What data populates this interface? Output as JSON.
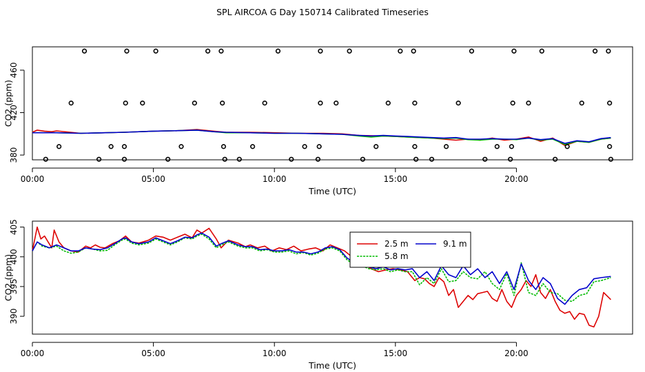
{
  "title": "SPL AIRCOA G  Day 150714  Calibrated Timeseries",
  "colors": {
    "red": "#dd0000",
    "green": "#00bb00",
    "blue": "#0000cc",
    "axis": "#000000"
  },
  "chart_data": [
    {
      "type": "scatter",
      "title": "SPL AIRCOA G  Day 150714  Calibrated Timeseries",
      "xlabel": "Time (UTC)",
      "ylabel": "CO2 (ppm)",
      "xlim": [
        0,
        24.8
      ],
      "ylim": [
        375.5,
        482
      ],
      "x_tick_values": [
        0,
        5,
        10,
        15,
        20
      ],
      "x_tick_labels": [
        "00:00",
        "05:00",
        "10:00",
        "15:00",
        "20:00"
      ],
      "y_tick_values": [
        380,
        420,
        460
      ],
      "y_tick_labels": [
        "380",
        "420",
        "460"
      ],
      "calibration_points": {
        "name": "calibration",
        "marker": "open-circle",
        "x": [
          2.15,
          3.9,
          5.1,
          7.25,
          7.8,
          10.15,
          11.9,
          13.1,
          15.2,
          15.75,
          18.15,
          19.9,
          21.05,
          23.25,
          23.8,
          1.6,
          3.85,
          4.55,
          6.7,
          7.85,
          9.6,
          11.9,
          12.55,
          14.7,
          15.8,
          17.6,
          19.85,
          20.5,
          22.7,
          23.85,
          1.1,
          3.25,
          3.8,
          6.15,
          7.9,
          9.1,
          11.25,
          11.85,
          14.2,
          15.8,
          17.1,
          19.2,
          19.8,
          22.1,
          23.85,
          0.55,
          2.75,
          3.8,
          5.6,
          7.95,
          8.55,
          10.7,
          11.8,
          13.65,
          15.85,
          16.5,
          18.7,
          19.75,
          21.6,
          23.9
        ],
        "y": [
          478,
          478,
          478,
          478,
          478,
          478,
          478,
          478,
          478,
          478,
          478,
          478,
          478,
          478,
          478,
          429,
          429,
          429,
          429,
          429,
          429,
          429,
          429,
          429,
          429,
          429,
          429,
          429,
          429,
          429,
          388,
          388,
          388,
          388,
          388,
          388,
          388,
          388,
          388,
          388,
          388,
          388,
          388,
          388,
          388,
          376,
          376,
          376,
          376,
          376,
          376,
          376,
          376,
          376,
          376,
          376,
          376,
          376,
          376,
          376
        ]
      },
      "series": [
        {
          "name": "2.5 m",
          "color": "#dd0000",
          "x": [
            0,
            0.2,
            0.5,
            0.8,
            1,
            2,
            3,
            3.8,
            5,
            6,
            6.8,
            7.5,
            8,
            9,
            10,
            11,
            12,
            12.8,
            13.5,
            14.5,
            15,
            15.5,
            16,
            16.5,
            17,
            17.5,
            18,
            18.5,
            19,
            19.5,
            20,
            20.5,
            21,
            21.5,
            22,
            22.5,
            23,
            23.5,
            23.9
          ],
          "values": [
            401.5,
            403.5,
            402.5,
            402,
            402.8,
            400.5,
            401,
            401.5,
            402.5,
            403,
            404,
            402.5,
            401.5,
            401.5,
            401,
            400.5,
            400.5,
            400,
            398.5,
            398,
            397.5,
            397,
            396.5,
            396,
            395,
            394,
            395,
            394,
            396,
            394,
            395,
            397,
            393,
            396,
            389,
            393,
            392,
            395,
            396
          ]
        },
        {
          "name": "5.8 m",
          "color": "#00bb00",
          "x": [
            0,
            0.5,
            1,
            2,
            3,
            3.8,
            5,
            6,
            6.8,
            7.5,
            8,
            9,
            10,
            11,
            12,
            12.8,
            13.5,
            14,
            14.5,
            15,
            15.5,
            16,
            16.5,
            17,
            17.5,
            18,
            18.5,
            19,
            19.5,
            20,
            20.5,
            21,
            21.5,
            22,
            22.5,
            23,
            23.5,
            23.9
          ],
          "values": [
            401,
            401,
            401,
            400.5,
            401,
            401.5,
            402.5,
            403,
            403.5,
            402,
            401,
            401,
            400.5,
            400.5,
            400,
            399.5,
            398,
            397,
            398,
            397.5,
            397,
            396.5,
            396,
            395.5,
            396,
            394.5,
            394,
            395,
            395,
            394.5,
            396,
            394,
            395,
            390,
            393,
            392,
            395,
            396
          ]
        },
        {
          "name": "9.1 m",
          "color": "#0000cc",
          "x": [
            0,
            0.5,
            1,
            2,
            3,
            3.8,
            5,
            6,
            6.8,
            7.5,
            8,
            9,
            10,
            11,
            12,
            12.8,
            13.5,
            14,
            14.5,
            15,
            15.5,
            16,
            16.5,
            17,
            17.5,
            18,
            18.5,
            19,
            19.5,
            20,
            20.5,
            21,
            21.5,
            22,
            22.5,
            23,
            23.5,
            23.9
          ],
          "values": [
            401,
            401,
            401,
            400.5,
            401,
            401.5,
            402.5,
            403,
            403.5,
            402,
            401.5,
            401,
            400.5,
            400.5,
            400,
            399.5,
            398.5,
            398,
            398.5,
            398,
            397.5,
            397,
            396.5,
            396,
            396.5,
            395,
            395,
            395.5,
            395,
            395,
            396,
            394.5,
            395.5,
            391,
            393.5,
            392.5,
            395.5,
            396.5
          ]
        }
      ]
    },
    {
      "type": "line",
      "title": "",
      "xlabel": "Time (UTC)",
      "ylabel": "CO2 (ppm)",
      "xlim": [
        0,
        24.8
      ],
      "ylim": [
        387,
        406
      ],
      "x_tick_values": [
        0,
        5,
        10,
        15,
        20
      ],
      "x_tick_labels": [
        "00:00",
        "05:00",
        "10:00",
        "15:00",
        "20:00"
      ],
      "y_tick_values": [
        390,
        395,
        400,
        405
      ],
      "y_tick_labels": [
        "390",
        "395",
        "400",
        "405"
      ],
      "legend": {
        "placement": "top-center",
        "entries": [
          "2.5 m",
          "9.1 m",
          "5.8 m"
        ]
      },
      "series": [
        {
          "name": "2.5 m",
          "color": "#dd0000",
          "x": [
            0,
            0.2,
            0.35,
            0.5,
            0.65,
            0.8,
            0.9,
            1.1,
            1.3,
            1.6,
            1.9,
            2.2,
            2.4,
            2.6,
            2.8,
            3.0,
            3.3,
            3.6,
            3.85,
            4.1,
            4.4,
            4.8,
            5.1,
            5.4,
            5.7,
            6.0,
            6.3,
            6.6,
            6.8,
            7.0,
            7.3,
            7.6,
            7.8,
            8.1,
            8.5,
            8.8,
            9.0,
            9.3,
            9.6,
            9.9,
            10.2,
            10.5,
            10.8,
            11.1,
            11.4,
            11.7,
            12.0,
            12.3,
            12.6,
            12.9,
            13.2,
            13.5,
            13.8,
            14.0,
            14.3,
            14.6,
            14.9,
            15.2,
            15.5,
            15.8,
            16.0,
            16.2,
            16.4,
            16.6,
            16.8,
            17.0,
            17.2,
            17.4,
            17.6,
            17.8,
            18.0,
            18.2,
            18.4,
            18.6,
            18.8,
            19.0,
            19.2,
            19.4,
            19.6,
            19.8,
            20.0,
            20.2,
            20.4,
            20.6,
            20.8,
            21.0,
            21.2,
            21.4,
            21.6,
            21.8,
            22.0,
            22.2,
            22.4,
            22.6,
            22.8,
            23.0,
            23.2,
            23.4,
            23.6,
            23.9
          ],
          "values": [
            401,
            405,
            403,
            403.5,
            402.5,
            401.5,
            404.5,
            402.5,
            401.5,
            401,
            400.8,
            401.8,
            401.5,
            402,
            401.6,
            401.5,
            402.2,
            402.7,
            403.5,
            402.5,
            402.3,
            402.8,
            403.5,
            403.3,
            402.8,
            403.3,
            403.8,
            403.2,
            404.5,
            404,
            404.8,
            403,
            401.5,
            402.8,
            402.3,
            401.7,
            402,
            401.5,
            401.8,
            401,
            401.5,
            401.2,
            401.8,
            401,
            401.3,
            401.5,
            401,
            402,
            401.5,
            401,
            400,
            398.7,
            398.5,
            398,
            397.5,
            397.8,
            398,
            397.8,
            397.5,
            396,
            396.5,
            396.3,
            395.5,
            395,
            396.5,
            395.8,
            393.5,
            394.5,
            391.5,
            392.5,
            393.5,
            392.8,
            393.8,
            394,
            394.2,
            393,
            392.5,
            394.5,
            392.5,
            391.5,
            393.5,
            394.5,
            396,
            395,
            397,
            394,
            393,
            394.5,
            392.5,
            391,
            390.5,
            390.8,
            389.5,
            390.5,
            390.3,
            388.5,
            388.2,
            390,
            394,
            392.8
          ]
        },
        {
          "name": "5.8 m",
          "color": "#00bb00",
          "x": [
            0,
            0.2,
            0.4,
            0.7,
            1.0,
            1.3,
            1.6,
            1.9,
            2.2,
            2.5,
            2.8,
            3.1,
            3.4,
            3.7,
            3.85,
            4.1,
            4.4,
            4.8,
            5.1,
            5.4,
            5.7,
            6.0,
            6.3,
            6.6,
            6.8,
            7.0,
            7.3,
            7.6,
            7.8,
            8.1,
            8.5,
            8.8,
            9.1,
            9.4,
            9.7,
            10.0,
            10.3,
            10.6,
            10.9,
            11.2,
            11.5,
            11.8,
            12.1,
            12.4,
            12.7,
            13.0,
            13.3,
            13.6,
            13.9,
            14.2,
            14.5,
            14.8,
            15.1,
            15.4,
            15.7,
            16.0,
            16.3,
            16.6,
            16.9,
            17.2,
            17.5,
            17.8,
            18.1,
            18.4,
            18.7,
            19.0,
            19.3,
            19.6,
            19.9,
            20.2,
            20.5,
            20.8,
            21.1,
            21.4,
            21.7,
            22.0,
            22.3,
            22.6,
            22.9,
            23.2,
            23.5,
            23.9
          ],
          "values": [
            401,
            402.5,
            401.8,
            401.5,
            401.8,
            401,
            400.6,
            400.8,
            401.5,
            401.3,
            401,
            401.1,
            402,
            402.8,
            403,
            402.3,
            402,
            402.3,
            403,
            402.5,
            402,
            402.5,
            403.2,
            403,
            403.5,
            403.8,
            403,
            401.5,
            402,
            402.5,
            401.8,
            401.5,
            401.5,
            401,
            401.2,
            400.8,
            400.8,
            401,
            400.5,
            400.7,
            400.3,
            400.6,
            401.3,
            401.5,
            401,
            399.5,
            398.7,
            398.5,
            398,
            397.8,
            398,
            397.5,
            397.8,
            397.5,
            397.5,
            395.3,
            396.5,
            395.5,
            398,
            395.8,
            396,
            397.5,
            396.5,
            396.3,
            397.5,
            395.5,
            394.5,
            397.2,
            393.5,
            399,
            394,
            393.5,
            395.5,
            394,
            393.8,
            392.7,
            392.5,
            393.5,
            393.8,
            395.8,
            396,
            396.5
          ]
        },
        {
          "name": "9.1 m",
          "color": "#0000cc",
          "x": [
            0,
            0.2,
            0.4,
            0.7,
            1.0,
            1.3,
            1.6,
            1.9,
            2.2,
            2.5,
            2.8,
            3.1,
            3.4,
            3.7,
            3.85,
            4.1,
            4.4,
            4.8,
            5.1,
            5.4,
            5.7,
            6.0,
            6.3,
            6.6,
            6.8,
            7.0,
            7.3,
            7.6,
            7.8,
            8.1,
            8.5,
            8.8,
            9.1,
            9.4,
            9.7,
            10.0,
            10.3,
            10.6,
            10.9,
            11.2,
            11.5,
            11.8,
            12.1,
            12.4,
            12.7,
            13.0,
            13.3,
            13.6,
            13.9,
            14.2,
            14.5,
            14.8,
            15.1,
            15.4,
            15.7,
            16.0,
            16.3,
            16.6,
            16.9,
            17.2,
            17.5,
            17.8,
            18.1,
            18.4,
            18.7,
            19.0,
            19.3,
            19.6,
            19.9,
            20.2,
            20.5,
            20.8,
            21.1,
            21.4,
            21.7,
            22.0,
            22.3,
            22.6,
            22.9,
            23.2,
            23.5,
            23.9
          ],
          "values": [
            401,
            402.5,
            402,
            401.5,
            402,
            401.5,
            401,
            401,
            401.5,
            401.3,
            401.2,
            401.5,
            402.2,
            403,
            403.2,
            402.5,
            402.2,
            402.5,
            403.2,
            402.7,
            402.2,
            402.7,
            403.3,
            403.2,
            403.7,
            404,
            403.3,
            401.8,
            402.2,
            402.7,
            402,
            401.7,
            401.7,
            401.2,
            401.3,
            401,
            401,
            401.2,
            400.8,
            400.8,
            400.5,
            400.8,
            401.5,
            401.7,
            401.2,
            399.8,
            399,
            398.8,
            398.3,
            398,
            398.3,
            397.8,
            398,
            397.8,
            398,
            396.5,
            397.5,
            396,
            398.5,
            397,
            396.5,
            398.5,
            397,
            398,
            396.5,
            397.5,
            395.5,
            397.5,
            394.5,
            398.8,
            396,
            394.5,
            396.5,
            395.5,
            393,
            392,
            393.5,
            394.5,
            394.8,
            396.3,
            396.5,
            396.7
          ]
        }
      ]
    }
  ]
}
